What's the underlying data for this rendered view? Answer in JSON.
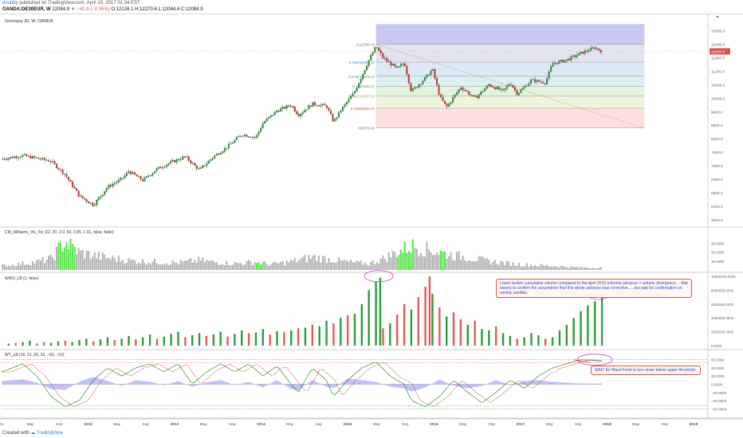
{
  "header": {
    "user": "doubby",
    "published": "published on TradingView.com, April 15, 2017 01:34 EST",
    "symbol": "OANDA:DE30EUR, W",
    "last": "12084.9",
    "change": "−42.9 (−0.35%)",
    "ohlc": {
      "o": "O:12126.1",
      "h": "H:12270.6",
      "l": "L:12044.4",
      "c": "C:12084.9"
    }
  },
  "footer": {
    "created_with": "Created with",
    "brand": "TradingView"
  },
  "colors": {
    "up": "#2a9d3c",
    "down": "#d63a2a",
    "green_bright": "#57e64c",
    "grey_bar": "#b3b3b3",
    "price_tag": "#d9534f",
    "wt_fill": "#8f8df0"
  },
  "panes": {
    "price": {
      "label": "Germany 30, W, OANDA",
      "last_tag": "12084.9"
    },
    "williams": {
      "label": "CM_Williams_Vix_Fix (22, 20, 2.0, 50, 0.85, 1.01, false, false)"
    },
    "wwv": {
      "label": "WWV_LB (2, false)"
    },
    "wt": {
      "label": "WT_LB (10, 21, 60, 53, −60, −53)"
    }
  },
  "annotations": {
    "wwv_note": "Lower bullish cumulative volume compared to the April 2015 extreme advance = volume divergence.... that seems to confirm the assumption that this whole advance was corrective......but wait for confirmation on weekly candles.",
    "wt_note": "WAIT for WaveTrend to turn down below upper threshold."
  },
  "chart_data": [
    {
      "type": "candlestick",
      "title": "Germany 30, W, OANDA",
      "y_ticks": [
        "13000.0",
        "12400.0",
        "11800.0",
        "11200.0",
        "10600.0",
        "10000.0",
        "9400.0",
        "8800.0",
        "8200.0",
        "7600.0",
        "7000.0",
        "6400.0",
        "5800.0",
        "5200.0",
        "4600.0"
      ],
      "ylim": [
        4450,
        13450
      ],
      "x_ticks": [
        "11",
        "May",
        "Sep",
        "2012",
        "May",
        "Sep",
        "2013",
        "May",
        "Sep",
        "2014",
        "May",
        "Sep",
        "2015",
        "May",
        "Sep",
        "2016",
        "May",
        "Sep",
        "2017",
        "May",
        "Sep",
        "2018",
        "May",
        "Sep",
        "2019"
      ],
      "xlim": [
        0,
        100
      ],
      "price_waypoints": [
        [
          0,
          7300
        ],
        [
          3,
          7450
        ],
        [
          7,
          7200
        ],
        [
          9,
          6600
        ],
        [
          11,
          5650
        ],
        [
          13,
          5250
        ],
        [
          15,
          6050
        ],
        [
          17,
          6400
        ],
        [
          18,
          6750
        ],
        [
          20,
          6350
        ],
        [
          22,
          6850
        ],
        [
          24,
          7150
        ],
        [
          26,
          7400
        ],
        [
          28,
          6800
        ],
        [
          30,
          7400
        ],
        [
          32,
          7850
        ],
        [
          34,
          8400
        ],
        [
          36,
          8250
        ],
        [
          37,
          8900
        ],
        [
          39,
          9450
        ],
        [
          41,
          9700
        ],
        [
          42,
          9250
        ],
        [
          44,
          9750
        ],
        [
          46,
          9650
        ],
        [
          47,
          8950
        ],
        [
          48,
          9450
        ],
        [
          50,
          10300
        ],
        [
          52,
          11700
        ],
        [
          53,
          12300
        ],
        [
          54,
          11800
        ],
        [
          56,
          11300
        ],
        [
          57,
          11600
        ],
        [
          58,
          10300
        ],
        [
          60,
          10900
        ],
        [
          61,
          11300
        ],
        [
          62,
          10100
        ],
        [
          63,
          9600
        ],
        [
          65,
          10500
        ],
        [
          67,
          10000
        ],
        [
          69,
          10600
        ],
        [
          71,
          10300
        ],
        [
          72,
          10700
        ],
        [
          73,
          10200
        ],
        [
          75,
          10800
        ],
        [
          77,
          10700
        ],
        [
          78,
          11550
        ],
        [
          80,
          11700
        ],
        [
          82,
          12000
        ],
        [
          84,
          12250
        ],
        [
          85,
          12085
        ]
      ],
      "fibonacci": {
        "x_range": [
          53,
          91
        ],
        "levels": [
          {
            "label": "1(12396.4)",
            "value": 12396.4
          },
          {
            "label": "0.786(11603.9)",
            "value": 11603.9
          },
          {
            "label": "0.618(10976.2)",
            "value": 10976.2
          },
          {
            "label": "0.5(10536.2)",
            "value": 10536.2
          },
          {
            "label": "0.382(10097.1)",
            "value": 10097.1
          },
          {
            "label": "0.236(9554.0)",
            "value": 9554.0
          },
          {
            "label": "0(8676.9)",
            "value": 8676.9
          }
        ],
        "top_band": 13300
      }
    },
    {
      "type": "bar",
      "title": "CM_Williams_Vix_Fix (22, 20, 2.0, 50, 0.85, 1.01, false, false)",
      "y_ticks": [
        "30.0000",
        "20.0000",
        "10.0000"
      ],
      "ylim": [
        0,
        40
      ],
      "profile": [
        [
          0,
          5
        ],
        [
          3,
          8
        ],
        [
          5,
          10
        ],
        [
          7,
          14
        ],
        [
          8,
          25
        ],
        [
          9,
          36
        ],
        [
          10,
          28
        ],
        [
          11,
          22
        ],
        [
          13,
          18
        ],
        [
          16,
          14
        ],
        [
          19,
          11
        ],
        [
          22,
          10
        ],
        [
          25,
          9
        ],
        [
          28,
          12
        ],
        [
          30,
          10
        ],
        [
          33,
          8
        ],
        [
          36,
          10
        ],
        [
          38,
          7
        ],
        [
          40,
          9
        ],
        [
          42,
          12
        ],
        [
          44,
          16
        ],
        [
          46,
          14
        ],
        [
          48,
          11
        ],
        [
          50,
          9
        ],
        [
          52,
          8
        ],
        [
          54,
          14
        ],
        [
          56,
          22
        ],
        [
          58,
          30
        ],
        [
          60,
          26
        ],
        [
          62,
          22
        ],
        [
          64,
          18
        ],
        [
          66,
          16
        ],
        [
          68,
          12
        ],
        [
          70,
          10
        ],
        [
          72,
          8
        ],
        [
          75,
          6
        ],
        [
          78,
          5
        ],
        [
          80,
          4
        ],
        [
          82,
          3
        ],
        [
          85,
          3
        ]
      ],
      "bright_ranges": [
        [
          8,
          10.5
        ],
        [
          36,
          37
        ],
        [
          56,
          58.5
        ],
        [
          62,
          62.8
        ]
      ]
    },
    {
      "type": "bar",
      "title": "WWV_LB (2, false)",
      "y_ticks": [
        "10000000.0000",
        "8000000.0000",
        "6000000.0000",
        "4000000.0000",
        "2000000.0000",
        "0.0000"
      ],
      "ylim": [
        0,
        10000000
      ],
      "bars": [
        [
          1,
          "u",
          3
        ],
        [
          2,
          "d",
          4
        ],
        [
          3,
          "u",
          5
        ],
        [
          4,
          "u",
          7
        ],
        [
          5,
          "d",
          3
        ],
        [
          6,
          "d",
          5
        ],
        [
          7,
          "u",
          4
        ],
        [
          8,
          "u",
          6
        ],
        [
          9,
          "d",
          7
        ],
        [
          10,
          "u",
          5
        ],
        [
          11,
          "u",
          8
        ],
        [
          12,
          "u",
          10
        ],
        [
          13,
          "d",
          6
        ],
        [
          14,
          "u",
          9
        ],
        [
          15,
          "u",
          12
        ],
        [
          16,
          "d",
          8
        ],
        [
          17,
          "u",
          10
        ],
        [
          18,
          "u",
          14
        ],
        [
          19,
          "d",
          9
        ],
        [
          20,
          "u",
          12
        ],
        [
          21,
          "u",
          16
        ],
        [
          22,
          "d",
          10
        ],
        [
          23,
          "u",
          13
        ],
        [
          24,
          "u",
          17
        ],
        [
          25,
          "u",
          20
        ],
        [
          26,
          "d",
          12
        ],
        [
          27,
          "u",
          15
        ],
        [
          28,
          "u",
          18
        ],
        [
          29,
          "d",
          14
        ],
        [
          30,
          "u",
          16
        ],
        [
          31,
          "u",
          20
        ],
        [
          32,
          "d",
          13
        ],
        [
          33,
          "u",
          17
        ],
        [
          34,
          "u",
          22
        ],
        [
          35,
          "d",
          18
        ],
        [
          36,
          "u",
          19
        ],
        [
          37,
          "u",
          24
        ],
        [
          38,
          "d",
          16
        ],
        [
          39,
          "u",
          21
        ],
        [
          40,
          "d",
          20
        ],
        [
          41,
          "u",
          22
        ],
        [
          42,
          "d",
          25
        ],
        [
          43,
          "u",
          26
        ],
        [
          44,
          "d",
          30
        ],
        [
          45,
          "u",
          28
        ],
        [
          46,
          "u",
          36
        ],
        [
          47,
          "d",
          32
        ],
        [
          48,
          "u",
          40
        ],
        [
          49,
          "d",
          44
        ],
        [
          50,
          "u",
          46
        ],
        [
          51,
          "u",
          60
        ],
        [
          52,
          "u",
          80
        ],
        [
          53,
          "u",
          92
        ],
        [
          53.6,
          "u",
          98
        ],
        [
          54,
          "d",
          25
        ],
        [
          55,
          "u",
          32
        ],
        [
          56,
          "d",
          45
        ],
        [
          57,
          "d",
          60
        ],
        [
          58,
          "u",
          52
        ],
        [
          59,
          "d",
          70
        ],
        [
          60,
          "d",
          85
        ],
        [
          60.6,
          "d",
          100
        ],
        [
          61,
          "u",
          75
        ],
        [
          62,
          "d",
          55
        ],
        [
          63,
          "u",
          42
        ],
        [
          64,
          "d",
          48
        ],
        [
          65,
          "d",
          38
        ],
        [
          66,
          "u",
          30
        ],
        [
          67,
          "d",
          36
        ],
        [
          68,
          "u",
          24
        ],
        [
          69,
          "u",
          22
        ],
        [
          70,
          "d",
          28
        ],
        [
          71,
          "u",
          18
        ],
        [
          72,
          "u",
          14
        ],
        [
          73,
          "d",
          10
        ],
        [
          74,
          "u",
          12
        ],
        [
          75,
          "u",
          18
        ],
        [
          76,
          "u",
          15
        ],
        [
          77,
          "d",
          10
        ],
        [
          78,
          "u",
          12
        ],
        [
          79,
          "u",
          22
        ],
        [
          80,
          "u",
          30
        ],
        [
          81,
          "u",
          40
        ],
        [
          82,
          "u",
          50
        ],
        [
          83,
          "u",
          58
        ],
        [
          84,
          "u",
          64
        ],
        [
          85,
          "u",
          70
        ]
      ]
    },
    {
      "type": "line",
      "title": "WT_LB (10, 21, 60, 53, −60, −53)",
      "y_ticks": [
        "60.0000",
        "40.0000",
        "20.0000",
        "0.0000",
        "−20.0000",
        "−40.0000",
        "−60.0000"
      ],
      "ylim": [
        -75,
        75
      ],
      "thresholds": [
        60,
        53,
        -53,
        -60
      ],
      "wt1": [
        [
          0,
          30
        ],
        [
          3,
          50
        ],
        [
          5,
          20
        ],
        [
          7,
          -30
        ],
        [
          9,
          -55
        ],
        [
          11,
          -40
        ],
        [
          13,
          10
        ],
        [
          15,
          40
        ],
        [
          17,
          20
        ],
        [
          19,
          40
        ],
        [
          21,
          50
        ],
        [
          23,
          30
        ],
        [
          25,
          50
        ],
        [
          27,
          0
        ],
        [
          29,
          30
        ],
        [
          31,
          50
        ],
        [
          33,
          30
        ],
        [
          35,
          50
        ],
        [
          37,
          20
        ],
        [
          39,
          45
        ],
        [
          41,
          0
        ],
        [
          42,
          -20
        ],
        [
          44,
          40
        ],
        [
          46,
          10
        ],
        [
          47,
          -30
        ],
        [
          49,
          10
        ],
        [
          51,
          40
        ],
        [
          53,
          55
        ],
        [
          55,
          20
        ],
        [
          57,
          0
        ],
        [
          58,
          -40
        ],
        [
          60,
          -55
        ],
        [
          62,
          -30
        ],
        [
          64,
          10
        ],
        [
          66,
          -20
        ],
        [
          68,
          -45
        ],
        [
          70,
          -20
        ],
        [
          72,
          10
        ],
        [
          74,
          -10
        ],
        [
          76,
          20
        ],
        [
          78,
          40
        ],
        [
          80,
          50
        ],
        [
          82,
          60
        ],
        [
          84,
          58
        ],
        [
          85,
          56
        ]
      ],
      "fill_profile": [
        [
          0,
          8
        ],
        [
          3,
          12
        ],
        [
          5,
          4
        ],
        [
          7,
          -12
        ],
        [
          9,
          -14
        ],
        [
          11,
          6
        ],
        [
          13,
          18
        ],
        [
          15,
          8
        ],
        [
          17,
          -4
        ],
        [
          19,
          10
        ],
        [
          21,
          6
        ],
        [
          23,
          -2
        ],
        [
          25,
          8
        ],
        [
          27,
          -6
        ],
        [
          29,
          5
        ],
        [
          31,
          10
        ],
        [
          33,
          -2
        ],
        [
          35,
          6
        ],
        [
          37,
          -8
        ],
        [
          39,
          10
        ],
        [
          41,
          -12
        ],
        [
          42,
          -14
        ],
        [
          44,
          10
        ],
        [
          46,
          -6
        ],
        [
          47,
          -10
        ],
        [
          49,
          14
        ],
        [
          51,
          10
        ],
        [
          53,
          6
        ],
        [
          55,
          -6
        ],
        [
          57,
          -10
        ],
        [
          58,
          -18
        ],
        [
          60,
          -8
        ],
        [
          62,
          12
        ],
        [
          64,
          -4
        ],
        [
          66,
          -10
        ],
        [
          68,
          -4
        ],
        [
          70,
          10
        ],
        [
          72,
          -2
        ],
        [
          74,
          8
        ],
        [
          76,
          10
        ],
        [
          78,
          6
        ],
        [
          80,
          4
        ],
        [
          82,
          2
        ],
        [
          85,
          2
        ]
      ]
    }
  ]
}
